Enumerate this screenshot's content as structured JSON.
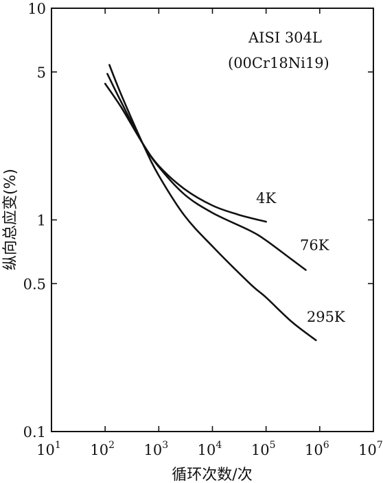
{
  "chart_data": {
    "type": "line",
    "title": "",
    "annotation": [
      "AISI 304L",
      "(00Cr18Ni19)"
    ],
    "xlabel": "循环次数/次",
    "ylabel": "纵向总应变(%)",
    "xscale": "log",
    "yscale": "log",
    "xlim": [
      10,
      10000000
    ],
    "ylim": [
      0.1,
      10
    ],
    "x_ticks": [
      {
        "value": 10,
        "base": "10",
        "exp": "1"
      },
      {
        "value": 100,
        "base": "10",
        "exp": "2"
      },
      {
        "value": 1000,
        "base": "10",
        "exp": "3"
      },
      {
        "value": 10000,
        "base": "10",
        "exp": "4"
      },
      {
        "value": 100000,
        "base": "10",
        "exp": "5"
      },
      {
        "value": 1000000,
        "base": "10",
        "exp": "6"
      },
      {
        "value": 10000000,
        "base": "10",
        "exp": "7"
      }
    ],
    "y_ticks": [
      {
        "value": 0.1,
        "label": "0.1"
      },
      {
        "value": 0.5,
        "label": "0.5"
      },
      {
        "value": 1,
        "label": "1"
      },
      {
        "value": 5,
        "label": "5"
      },
      {
        "value": 10,
        "label": "10"
      }
    ],
    "grid": false,
    "series": [
      {
        "name": "4K",
        "x": [
          100,
          200,
          500,
          1000,
          3000,
          10000,
          30000,
          100000
        ],
        "y": [
          4.4,
          3.4,
          2.3,
          1.8,
          1.4,
          1.17,
          1.06,
          0.98
        ]
      },
      {
        "name": "76K",
        "x": [
          110,
          200,
          500,
          1000,
          3000,
          10000,
          50000,
          100000,
          300000,
          550000
        ],
        "y": [
          4.9,
          3.6,
          2.3,
          1.78,
          1.32,
          1.08,
          0.89,
          0.8,
          0.65,
          0.58
        ]
      },
      {
        "name": "295K",
        "x": [
          120,
          200,
          500,
          1000,
          3000,
          10000,
          50000,
          100000,
          300000,
          850000
        ],
        "y": [
          5.4,
          3.9,
          2.3,
          1.62,
          1.05,
          0.75,
          0.5,
          0.43,
          0.33,
          0.27
        ]
      }
    ],
    "series_label_positions": {
      "4K": [
        100000,
        1.2
      ],
      "76K": [
        800000,
        0.72
      ],
      "295K": [
        1300000,
        0.33
      ]
    }
  }
}
